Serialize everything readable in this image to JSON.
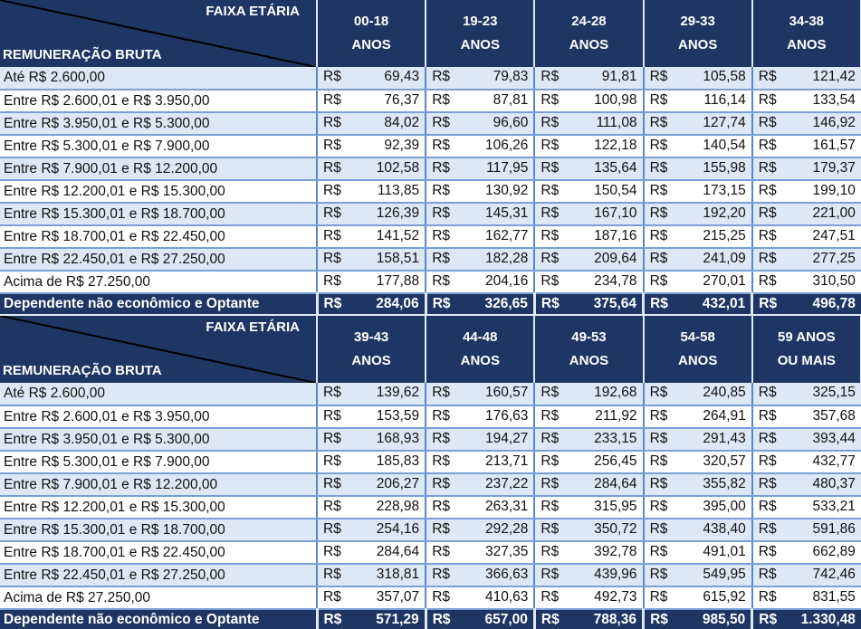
{
  "corner_header": {
    "top_right": "FAIXA ETÁRIA",
    "bottom_left": "REMUNERAÇÃO BRUTA"
  },
  "currency_symbol": "R$",
  "colors": {
    "header_bg": "#1f3563",
    "header_text": "#ffffff",
    "row_alt_bg": "#dce8f6",
    "row_bg": "#ffffff",
    "grid_line": "#5c86c9"
  },
  "row_labels": [
    "Até R$ 2.600,00",
    "Entre R$ 2.600,01 e R$ 3.950,00",
    "Entre R$ 3.950,01 e R$ 5.300,00",
    "Entre R$ 5.300,01 e R$ 7.900,00",
    "Entre R$ 7.900,01 e R$ 12.200,00",
    "Entre R$ 12.200,01 e R$ 15.300,00",
    "Entre R$ 15.300,01 e R$ 18.700,00",
    "Entre R$ 18.700,01 e R$ 22.450,00",
    "Entre R$ 22.450,01 e R$ 27.250,00",
    "Acima de R$ 27.250,00"
  ],
  "footer_label": "Dependente não econômico e Optante",
  "table1": {
    "columns": [
      {
        "line1": "00-18",
        "line2": "ANOS"
      },
      {
        "line1": "19-23",
        "line2": "ANOS"
      },
      {
        "line1": "24-28",
        "line2": "ANOS"
      },
      {
        "line1": "29-33",
        "line2": "ANOS"
      },
      {
        "line1": "34-38",
        "line2": "ANOS"
      }
    ],
    "rows": [
      [
        "69,43",
        "79,83",
        "91,81",
        "105,58",
        "121,42"
      ],
      [
        "76,37",
        "87,81",
        "100,98",
        "116,14",
        "133,54"
      ],
      [
        "84,02",
        "96,60",
        "111,08",
        "127,74",
        "146,92"
      ],
      [
        "92,39",
        "106,26",
        "122,18",
        "140,54",
        "161,57"
      ],
      [
        "102,58",
        "117,95",
        "135,64",
        "155,98",
        "179,37"
      ],
      [
        "113,85",
        "130,92",
        "150,54",
        "173,15",
        "199,10"
      ],
      [
        "126,39",
        "145,31",
        "167,10",
        "192,20",
        "221,00"
      ],
      [
        "141,52",
        "162,77",
        "187,16",
        "215,25",
        "247,51"
      ],
      [
        "158,51",
        "182,28",
        "209,64",
        "241,09",
        "277,25"
      ],
      [
        "177,88",
        "204,16",
        "234,78",
        "270,01",
        "310,50"
      ]
    ],
    "footer": [
      "284,06",
      "326,65",
      "375,64",
      "432,01",
      "496,78"
    ]
  },
  "table2": {
    "columns": [
      {
        "line1": "39-43",
        "line2": "ANOS"
      },
      {
        "line1": "44-48",
        "line2": "ANOS"
      },
      {
        "line1": "49-53",
        "line2": "ANOS"
      },
      {
        "line1": "54-58",
        "line2": "ANOS"
      },
      {
        "line1": "59 ANOS",
        "line2": "OU MAIS"
      }
    ],
    "rows": [
      [
        "139,62",
        "160,57",
        "192,68",
        "240,85",
        "325,15"
      ],
      [
        "153,59",
        "176,63",
        "211,92",
        "264,91",
        "357,68"
      ],
      [
        "168,93",
        "194,27",
        "233,15",
        "291,43",
        "393,44"
      ],
      [
        "185,83",
        "213,71",
        "256,45",
        "320,57",
        "432,77"
      ],
      [
        "206,27",
        "237,22",
        "284,64",
        "355,82",
        "480,37"
      ],
      [
        "228,98",
        "263,31",
        "315,95",
        "395,00",
        "533,21"
      ],
      [
        "254,16",
        "292,28",
        "350,72",
        "438,40",
        "591,86"
      ],
      [
        "284,64",
        "327,35",
        "392,78",
        "491,01",
        "662,89"
      ],
      [
        "318,81",
        "366,63",
        "439,96",
        "549,95",
        "742,46"
      ],
      [
        "357,07",
        "410,63",
        "492,73",
        "615,92",
        "831,55"
      ]
    ],
    "footer": [
      "571,29",
      "657,00",
      "788,36",
      "985,50",
      "1.330,48"
    ]
  }
}
